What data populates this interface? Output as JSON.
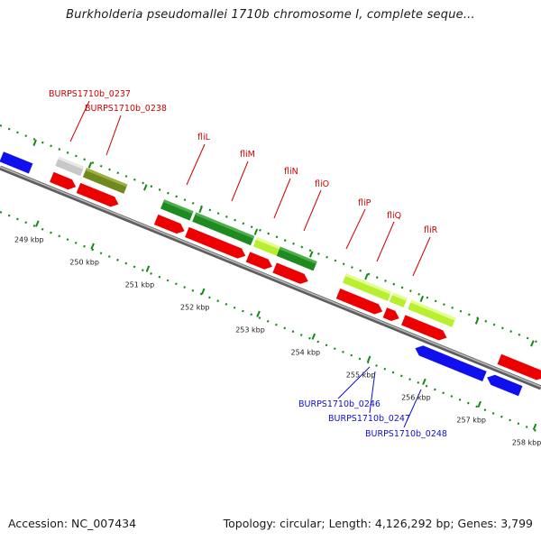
{
  "title": "Burkholderia pseudomallei 1710b chromosome I, complete seque...",
  "footer": {
    "accession": "Accession: NC_007434",
    "stats": "Topology: circular; Length: 4,126,292 bp; Genes: 3,799"
  },
  "tick_labels": [
    "249 kbp",
    "250 kbp",
    "251 kbp",
    "252 kbp",
    "253 kbp",
    "254 kbp",
    "255 kbp",
    "256 kbp",
    "257 kbp",
    "258 kbp"
  ],
  "gene_labels": {
    "burps_0237": "BURPS1710b_0237",
    "burps_0238": "BURPS1710b_0238",
    "fliL": "fliL",
    "fliM": "fliM",
    "fliN": "fliN",
    "fliO": "fliO",
    "fliP": "fliP",
    "fliQ": "fliQ",
    "fliR": "fliR",
    "burps_0246": "BURPS1710b_0246",
    "burps_0247": "BURPS1710b_0247",
    "burps_0248": "BURPS1710b_0248"
  },
  "colors": {
    "backbone": "#8a8a8a",
    "cds_forward": "#ee0000",
    "cds_reverse": "#1010ee",
    "blast_dark": "#1f8a1f",
    "blast_light": "#b8f030",
    "blast_olive": "#6e8a1e",
    "blast_grey": "#c8c8c8",
    "label_red": "#cc0000",
    "label_blue": "#1010cc",
    "tick_green": "#138a13"
  }
}
